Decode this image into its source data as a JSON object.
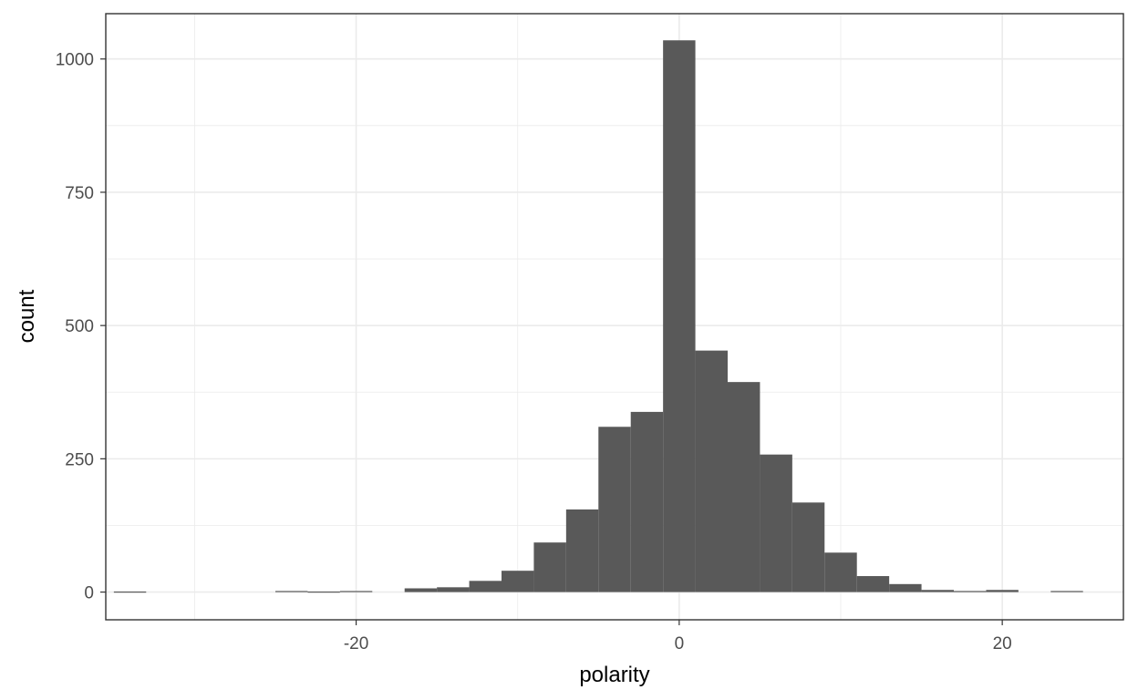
{
  "chart_data": {
    "type": "histogram",
    "xlabel": "polarity",
    "ylabel": "count",
    "xlim": [
      -35.5,
      27.5
    ],
    "ylim": [
      -52,
      1085
    ],
    "x_ticks": [
      -20,
      0,
      20
    ],
    "x_tick_labels": [
      "-20",
      "0",
      "20"
    ],
    "x_minor_grid": [
      -30,
      -10,
      10
    ],
    "y_ticks": [
      0,
      250,
      500,
      750,
      1000
    ],
    "y_tick_labels": [
      "0",
      "250",
      "500",
      "750",
      "1000"
    ],
    "y_minor_grid": [
      125,
      375,
      625,
      875
    ],
    "grid": true,
    "bin_width": 2,
    "bins": [
      {
        "x0": -35,
        "x1": -33,
        "count": 1
      },
      {
        "x0": -25,
        "x1": -23,
        "count": 2
      },
      {
        "x0": -23,
        "x1": -21,
        "count": 1
      },
      {
        "x0": -21,
        "x1": -19,
        "count": 2
      },
      {
        "x0": -17,
        "x1": -15,
        "count": 7
      },
      {
        "x0": -15,
        "x1": -13,
        "count": 9
      },
      {
        "x0": -13,
        "x1": -11,
        "count": 21
      },
      {
        "x0": -11,
        "x1": -9,
        "count": 40
      },
      {
        "x0": -9,
        "x1": -7,
        "count": 93
      },
      {
        "x0": -7,
        "x1": -5,
        "count": 155
      },
      {
        "x0": -5,
        "x1": -3,
        "count": 310
      },
      {
        "x0": -3,
        "x1": -1,
        "count": 338
      },
      {
        "x0": -1,
        "x1": 1,
        "count": 1035
      },
      {
        "x0": 1,
        "x1": 3,
        "count": 453
      },
      {
        "x0": 3,
        "x1": 5,
        "count": 394
      },
      {
        "x0": 5,
        "x1": 7,
        "count": 258
      },
      {
        "x0": 7,
        "x1": 9,
        "count": 168
      },
      {
        "x0": 9,
        "x1": 11,
        "count": 74
      },
      {
        "x0": 11,
        "x1": 13,
        "count": 30
      },
      {
        "x0": 13,
        "x1": 15,
        "count": 15
      },
      {
        "x0": 15,
        "x1": 17,
        "count": 4
      },
      {
        "x0": 17,
        "x1": 19,
        "count": 2
      },
      {
        "x0": 19,
        "x1": 21,
        "count": 4
      },
      {
        "x0": 23,
        "x1": 25,
        "count": 2
      }
    ],
    "bar_color": "#595959",
    "panel_background": "#ffffff",
    "grid_color": "#ebebeb",
    "border_color": "#333333"
  }
}
